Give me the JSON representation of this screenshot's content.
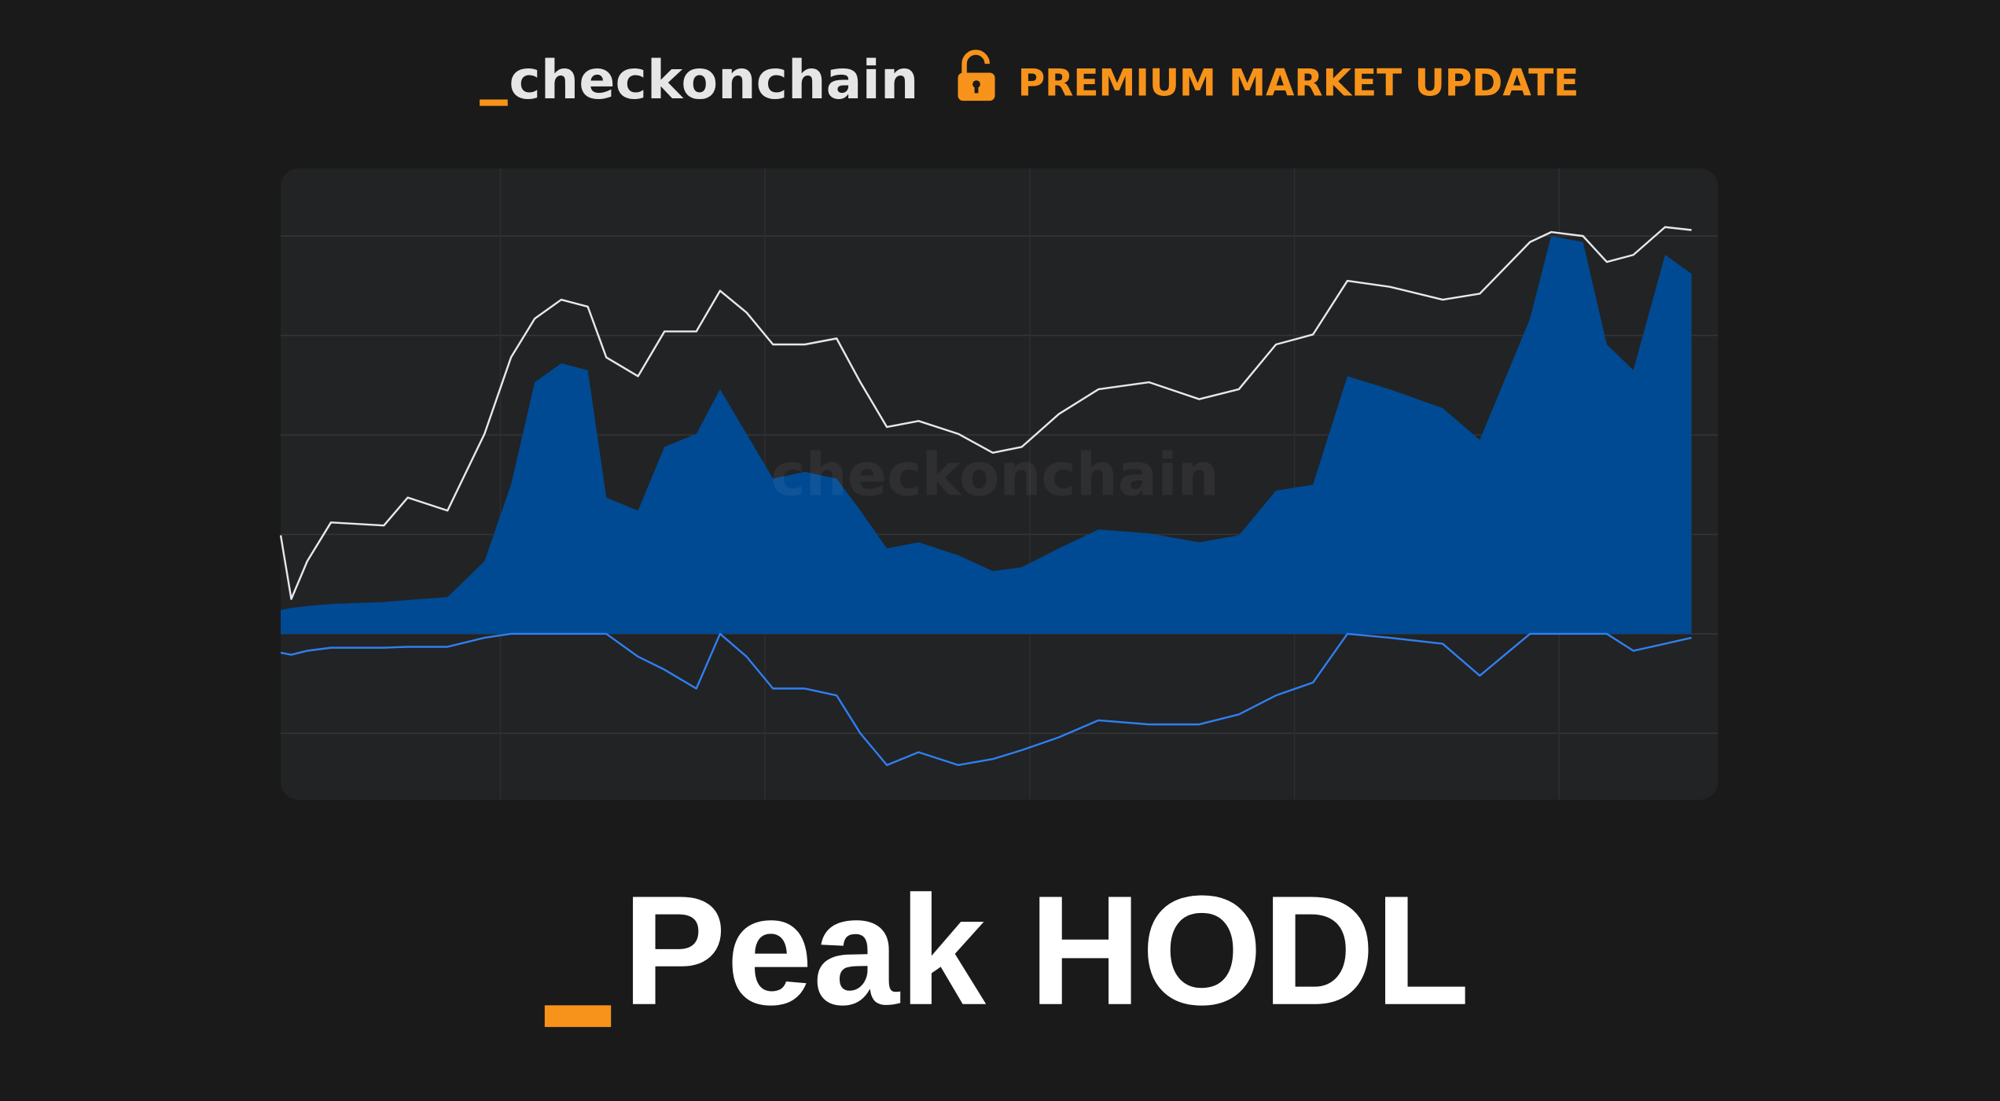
{
  "header": {
    "logo": "checkonchain",
    "badge": "PREMIUM MARKET UPDATE"
  },
  "title": "Peak HODL",
  "chart_data": {
    "type": "area-line",
    "x": [
      -0.83,
      -0.79,
      -0.73,
      -0.64,
      -0.44,
      -0.35,
      -0.2,
      -0.06,
      0.04,
      0.13,
      0.23,
      0.33,
      0.4,
      0.52,
      0.62,
      0.74,
      0.83,
      0.93,
      1.03,
      1.15,
      1.27,
      1.36,
      1.46,
      1.58,
      1.73,
      1.86,
      1.97,
      2.11,
      2.26,
      2.45,
      2.64,
      2.79,
      2.93,
      3.07,
      3.2,
      3.36,
      3.56,
      3.7,
      3.89,
      3.97,
      4.09,
      4.18,
      4.28,
      4.4,
      4.5
    ],
    "series": [
      {
        "color": "#e8e8e8",
        "kind": "line",
        "values": [
          0.99,
          0.35,
          0.73,
          1.12,
          1.09,
          1.37,
          1.24,
          2.01,
          2.78,
          3.17,
          3.36,
          3.29,
          2.78,
          2.59,
          3.04,
          3.04,
          3.45,
          3.23,
          2.91,
          2.91,
          2.97,
          2.53,
          2.08,
          2.14,
          2.01,
          1.82,
          1.88,
          2.21,
          2.46,
          2.53,
          2.36,
          2.46,
          2.91,
          3.01,
          3.55,
          3.49,
          3.36,
          3.42,
          3.94,
          4.04,
          4.0,
          3.74,
          3.81,
          4.09,
          4.06
        ]
      },
      {
        "color": "#004a93",
        "kind": "area",
        "values": [
          0.24,
          0.26,
          0.28,
          0.3,
          0.32,
          0.34,
          0.37,
          0.73,
          1.5,
          2.53,
          2.72,
          2.65,
          1.37,
          1.24,
          1.88,
          2.01,
          2.46,
          2.01,
          1.56,
          1.63,
          1.56,
          1.24,
          0.86,
          0.92,
          0.79,
          0.63,
          0.67,
          0.86,
          1.05,
          1.01,
          0.92,
          0.99,
          1.44,
          1.5,
          2.59,
          2.46,
          2.27,
          1.95,
          3.17,
          4.0,
          3.94,
          2.91,
          2.65,
          3.81,
          3.62
        ]
      },
      {
        "color": "#2f7ff0",
        "kind": "line",
        "values": [
          -0.19,
          -0.21,
          -0.17,
          -0.14,
          -0.14,
          -0.13,
          -0.13,
          -0.04,
          0,
          0,
          0,
          0,
          0,
          -0.23,
          -0.36,
          -0.55,
          0,
          -0.23,
          -0.55,
          -0.55,
          -0.62,
          -1.0,
          -1.32,
          -1.19,
          -1.32,
          -1.26,
          -1.17,
          -1.04,
          -0.87,
          -0.91,
          -0.91,
          -0.81,
          -0.62,
          -0.49,
          0,
          -0.04,
          -0.1,
          -0.42,
          0,
          0,
          0,
          0,
          -0.17,
          -0.1,
          -0.04
        ]
      }
    ],
    "xlim": [
      -0.83,
      4.6
    ],
    "xticks": [
      0,
      1,
      2,
      3,
      4
    ],
    "ylim": [
      -1.67,
      4.68
    ],
    "yticks": [
      -1,
      0,
      1,
      2,
      3,
      4
    ],
    "grid": true
  }
}
